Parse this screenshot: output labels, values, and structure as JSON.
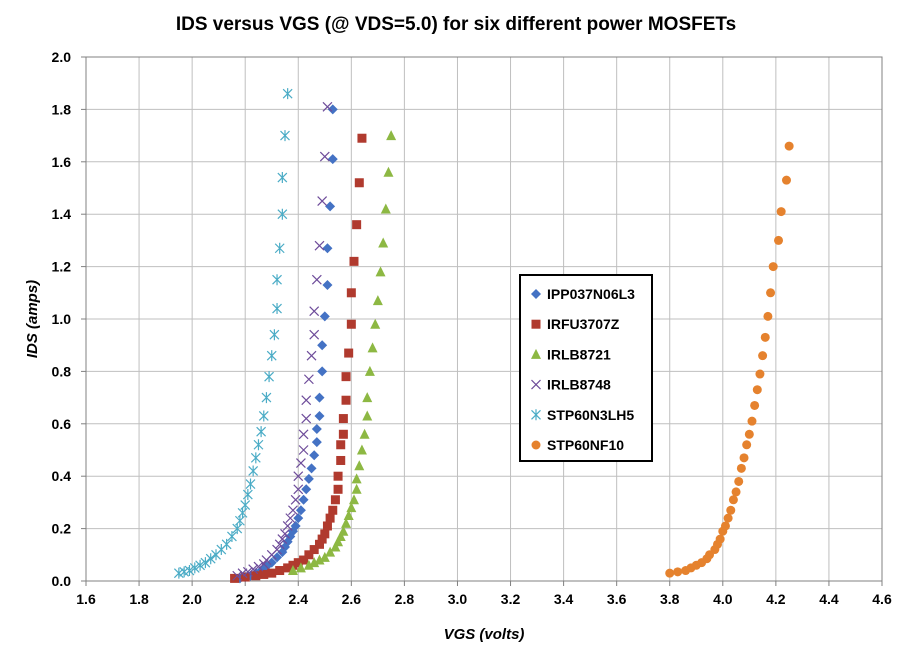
{
  "chart_data": {
    "type": "scatter",
    "title": "IDS  versus  VGS  (@ VDS=5.0)    for six different power MOSFETs",
    "xlabel": "VGS  (volts)",
    "ylabel": "IDS  (amps)",
    "xlim": [
      1.6,
      4.6
    ],
    "ylim": [
      0.0,
      2.0
    ],
    "xticks": [
      "1.6",
      "1.8",
      "2.0",
      "2.2",
      "2.4",
      "2.6",
      "2.8",
      "3.0",
      "3.2",
      "3.4",
      "3.6",
      "3.8",
      "4.0",
      "4.2",
      "4.4",
      "4.6"
    ],
    "yticks": [
      "0.0",
      "0.2",
      "0.4",
      "0.6",
      "0.8",
      "1.0",
      "1.2",
      "1.4",
      "1.6",
      "1.8",
      "2.0"
    ],
    "grid": true,
    "legend_position": "center-right",
    "series": [
      {
        "name": "IPP037N06L3",
        "marker": "diamond",
        "color": "#4472C4",
        "points": [
          [
            2.18,
            0.01
          ],
          [
            2.2,
            0.015
          ],
          [
            2.22,
            0.02
          ],
          [
            2.24,
            0.03
          ],
          [
            2.26,
            0.04
          ],
          [
            2.28,
            0.055
          ],
          [
            2.3,
            0.07
          ],
          [
            2.32,
            0.09
          ],
          [
            2.34,
            0.11
          ],
          [
            2.35,
            0.13
          ],
          [
            2.36,
            0.15
          ],
          [
            2.37,
            0.17
          ],
          [
            2.38,
            0.19
          ],
          [
            2.39,
            0.21
          ],
          [
            2.4,
            0.24
          ],
          [
            2.41,
            0.27
          ],
          [
            2.42,
            0.31
          ],
          [
            2.43,
            0.35
          ],
          [
            2.44,
            0.39
          ],
          [
            2.45,
            0.43
          ],
          [
            2.46,
            0.48
          ],
          [
            2.47,
            0.53
          ],
          [
            2.47,
            0.58
          ],
          [
            2.48,
            0.63
          ],
          [
            2.48,
            0.7
          ],
          [
            2.49,
            0.8
          ],
          [
            2.49,
            0.9
          ],
          [
            2.5,
            1.01
          ],
          [
            2.51,
            1.13
          ],
          [
            2.51,
            1.27
          ],
          [
            2.52,
            1.43
          ],
          [
            2.53,
            1.61
          ],
          [
            2.53,
            1.8
          ]
        ]
      },
      {
        "name": "IRFU3707Z",
        "marker": "square",
        "color": "#B03A2E",
        "points": [
          [
            2.16,
            0.01
          ],
          [
            2.2,
            0.015
          ],
          [
            2.24,
            0.02
          ],
          [
            2.27,
            0.025
          ],
          [
            2.3,
            0.03
          ],
          [
            2.33,
            0.04
          ],
          [
            2.36,
            0.05
          ],
          [
            2.38,
            0.06
          ],
          [
            2.4,
            0.07
          ],
          [
            2.42,
            0.08
          ],
          [
            2.44,
            0.1
          ],
          [
            2.46,
            0.12
          ],
          [
            2.48,
            0.14
          ],
          [
            2.49,
            0.16
          ],
          [
            2.5,
            0.18
          ],
          [
            2.51,
            0.21
          ],
          [
            2.52,
            0.24
          ],
          [
            2.53,
            0.27
          ],
          [
            2.54,
            0.31
          ],
          [
            2.55,
            0.35
          ],
          [
            2.55,
            0.4
          ],
          [
            2.56,
            0.46
          ],
          [
            2.56,
            0.52
          ],
          [
            2.57,
            0.56
          ],
          [
            2.57,
            0.62
          ],
          [
            2.58,
            0.69
          ],
          [
            2.58,
            0.78
          ],
          [
            2.59,
            0.87
          ],
          [
            2.6,
            0.98
          ],
          [
            2.6,
            1.1
          ],
          [
            2.61,
            1.22
          ],
          [
            2.62,
            1.36
          ],
          [
            2.63,
            1.52
          ],
          [
            2.64,
            1.69
          ]
        ]
      },
      {
        "name": "IRLB8721",
        "marker": "triangle",
        "color": "#8DB843",
        "points": [
          [
            2.38,
            0.04
          ],
          [
            2.41,
            0.05
          ],
          [
            2.44,
            0.06
          ],
          [
            2.46,
            0.07
          ],
          [
            2.48,
            0.08
          ],
          [
            2.5,
            0.09
          ],
          [
            2.52,
            0.11
          ],
          [
            2.54,
            0.13
          ],
          [
            2.55,
            0.15
          ],
          [
            2.56,
            0.17
          ],
          [
            2.57,
            0.19
          ],
          [
            2.58,
            0.22
          ],
          [
            2.59,
            0.25
          ],
          [
            2.6,
            0.28
          ],
          [
            2.61,
            0.31
          ],
          [
            2.62,
            0.35
          ],
          [
            2.62,
            0.39
          ],
          [
            2.63,
            0.44
          ],
          [
            2.64,
            0.5
          ],
          [
            2.65,
            0.56
          ],
          [
            2.66,
            0.63
          ],
          [
            2.66,
            0.7
          ],
          [
            2.67,
            0.8
          ],
          [
            2.68,
            0.89
          ],
          [
            2.69,
            0.98
          ],
          [
            2.7,
            1.07
          ],
          [
            2.71,
            1.18
          ],
          [
            2.72,
            1.29
          ],
          [
            2.73,
            1.42
          ],
          [
            2.74,
            1.56
          ],
          [
            2.75,
            1.7
          ]
        ]
      },
      {
        "name": "IRLB8748",
        "marker": "x",
        "color": "#6E4C9A",
        "points": [
          [
            2.17,
            0.02
          ],
          [
            2.19,
            0.03
          ],
          [
            2.21,
            0.035
          ],
          [
            2.23,
            0.045
          ],
          [
            2.25,
            0.055
          ],
          [
            2.27,
            0.065
          ],
          [
            2.28,
            0.08
          ],
          [
            2.3,
            0.1
          ],
          [
            2.32,
            0.12
          ],
          [
            2.33,
            0.14
          ],
          [
            2.34,
            0.16
          ],
          [
            2.35,
            0.18
          ],
          [
            2.36,
            0.21
          ],
          [
            2.37,
            0.24
          ],
          [
            2.38,
            0.27
          ],
          [
            2.39,
            0.31
          ],
          [
            2.4,
            0.35
          ],
          [
            2.4,
            0.4
          ],
          [
            2.41,
            0.45
          ],
          [
            2.42,
            0.5
          ],
          [
            2.42,
            0.56
          ],
          [
            2.43,
            0.62
          ],
          [
            2.43,
            0.69
          ],
          [
            2.44,
            0.77
          ],
          [
            2.45,
            0.86
          ],
          [
            2.46,
            0.94
          ],
          [
            2.46,
            1.03
          ],
          [
            2.47,
            1.15
          ],
          [
            2.48,
            1.28
          ],
          [
            2.49,
            1.45
          ],
          [
            2.5,
            1.62
          ],
          [
            2.51,
            1.81
          ]
        ]
      },
      {
        "name": "STP60N3LH5",
        "marker": "asterisk",
        "color": "#4BACC6",
        "points": [
          [
            1.95,
            0.03
          ],
          [
            1.97,
            0.035
          ],
          [
            1.99,
            0.04
          ],
          [
            2.01,
            0.05
          ],
          [
            2.03,
            0.06
          ],
          [
            2.05,
            0.07
          ],
          [
            2.07,
            0.085
          ],
          [
            2.09,
            0.1
          ],
          [
            2.11,
            0.12
          ],
          [
            2.13,
            0.14
          ],
          [
            2.15,
            0.17
          ],
          [
            2.17,
            0.2
          ],
          [
            2.18,
            0.23
          ],
          [
            2.19,
            0.26
          ],
          [
            2.2,
            0.29
          ],
          [
            2.21,
            0.33
          ],
          [
            2.22,
            0.37
          ],
          [
            2.23,
            0.42
          ],
          [
            2.24,
            0.47
          ],
          [
            2.25,
            0.52
          ],
          [
            2.26,
            0.57
          ],
          [
            2.27,
            0.63
          ],
          [
            2.28,
            0.7
          ],
          [
            2.29,
            0.78
          ],
          [
            2.3,
            0.86
          ],
          [
            2.31,
            0.94
          ],
          [
            2.32,
            1.04
          ],
          [
            2.32,
            1.15
          ],
          [
            2.33,
            1.27
          ],
          [
            2.34,
            1.4
          ],
          [
            2.34,
            1.54
          ],
          [
            2.35,
            1.7
          ],
          [
            2.36,
            1.86
          ]
        ]
      },
      {
        "name": "STP60NF10",
        "marker": "circle",
        "color": "#E5822E",
        "points": [
          [
            3.8,
            0.03
          ],
          [
            3.83,
            0.035
          ],
          [
            3.86,
            0.04
          ],
          [
            3.88,
            0.05
          ],
          [
            3.9,
            0.06
          ],
          [
            3.92,
            0.07
          ],
          [
            3.94,
            0.085
          ],
          [
            3.95,
            0.1
          ],
          [
            3.97,
            0.12
          ],
          [
            3.98,
            0.14
          ],
          [
            3.99,
            0.16
          ],
          [
            4.0,
            0.19
          ],
          [
            4.01,
            0.21
          ],
          [
            4.02,
            0.24
          ],
          [
            4.03,
            0.27
          ],
          [
            4.04,
            0.31
          ],
          [
            4.05,
            0.34
          ],
          [
            4.06,
            0.38
          ],
          [
            4.07,
            0.43
          ],
          [
            4.08,
            0.47
          ],
          [
            4.09,
            0.52
          ],
          [
            4.1,
            0.56
          ],
          [
            4.11,
            0.61
          ],
          [
            4.12,
            0.67
          ],
          [
            4.13,
            0.73
          ],
          [
            4.14,
            0.79
          ],
          [
            4.15,
            0.86
          ],
          [
            4.16,
            0.93
          ],
          [
            4.17,
            1.01
          ],
          [
            4.18,
            1.1
          ],
          [
            4.19,
            1.2
          ],
          [
            4.21,
            1.3
          ],
          [
            4.22,
            1.41
          ],
          [
            4.24,
            1.53
          ],
          [
            4.25,
            1.66
          ]
        ]
      }
    ]
  }
}
